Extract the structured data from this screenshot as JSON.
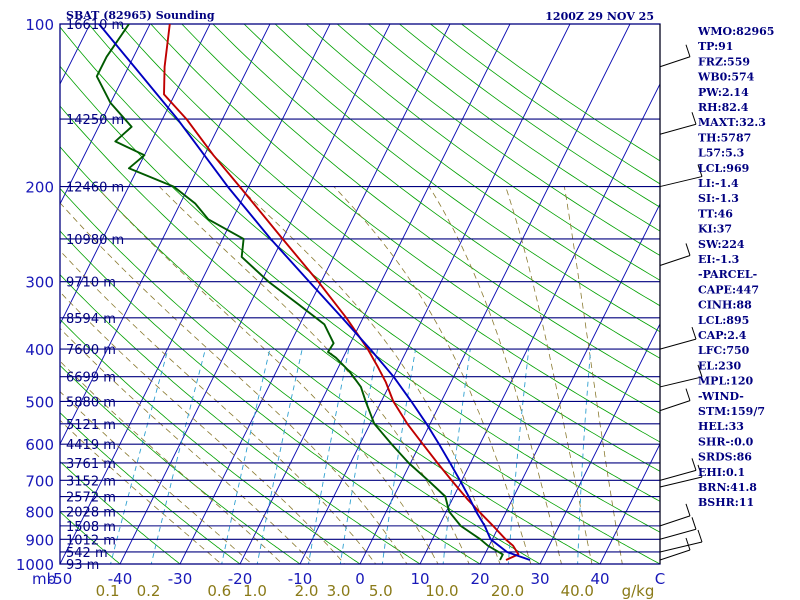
{
  "header": {
    "title": "SBAT (82965) Sounding",
    "time": "1200Z 29 NOV 25"
  },
  "indices": [
    "WMO:82965",
    "TP:91",
    "FRZ:559",
    "WB0:574",
    "PW:2.14",
    "RH:82.4",
    "MAXT:32.3",
    "TH:5787",
    "L57:5.3",
    "LCL:969",
    "LI:-1.4",
    "SI:-1.3",
    "TT:46",
    "KI:37",
    "SW:224",
    "EI:-1.3",
    "-PARCEL-",
    "CAPE:447",
    "CINH:88",
    "LCL:895",
    "CAP:2.4",
    "LFC:750",
    "EL:230",
    "MPL:120",
    "-WIND-",
    "STM:159/7",
    "HEL:33",
    "SHR-:0.0",
    "SRDS:86",
    "EHI:0.1",
    "BRN:41.8",
    "BSHR:11"
  ],
  "colors": {
    "isobar": "#00007f",
    "isotherm": "#0000b0",
    "dry_adiabat": "#00a000",
    "moist_adiabat": "#8a7a30",
    "mixing_ratio": "#2fa0d0",
    "temperature": "#c00000",
    "dewpoint": "#005a00",
    "parcel": "#0000c0"
  },
  "chart_data": {
    "type": "line",
    "subtype": "skew-T log-P sounding",
    "title": "SBAT (82965) Sounding",
    "xlabel": "C",
    "ylabel": "mb",
    "xlim": [
      -50,
      50
    ],
    "ylim": [
      1000,
      100
    ],
    "pressure_ticks": [
      {
        "p": 100,
        "label": "100"
      },
      {
        "p": 200,
        "label": "200"
      },
      {
        "p": 300,
        "label": "300"
      },
      {
        "p": 400,
        "label": "400"
      },
      {
        "p": 500,
        "label": "500"
      },
      {
        "p": 600,
        "label": "600"
      },
      {
        "p": 700,
        "label": "700"
      },
      {
        "p": 800,
        "label": "800"
      },
      {
        "p": 900,
        "label": "900"
      },
      {
        "p": 1000,
        "label": "1000"
      }
    ],
    "temp_ticks": [
      {
        "t": -50,
        "label": "-50"
      },
      {
        "t": -40,
        "label": "-40"
      },
      {
        "t": -30,
        "label": "-30"
      },
      {
        "t": -20,
        "label": "-20"
      },
      {
        "t": -10,
        "label": "-10"
      },
      {
        "t": 0,
        "label": "0"
      },
      {
        "t": 10,
        "label": "10"
      },
      {
        "t": 20,
        "label": "20"
      },
      {
        "t": 30,
        "label": "30"
      },
      {
        "t": 40,
        "label": "40"
      },
      {
        "t": 50,
        "label": "C"
      }
    ],
    "mb_label": "mb",
    "heights": [
      {
        "p": 100,
        "label": "16610 m"
      },
      {
        "p": 150,
        "label": "14250 m"
      },
      {
        "p": 200,
        "label": "12460 m"
      },
      {
        "p": 250,
        "label": "10980 m"
      },
      {
        "p": 300,
        "label": "9710 m"
      },
      {
        "p": 350,
        "label": "8594 m"
      },
      {
        "p": 400,
        "label": "7600 m"
      },
      {
        "p": 450,
        "label": "6699 m"
      },
      {
        "p": 500,
        "label": "5880 m"
      },
      {
        "p": 550,
        "label": "5121 m"
      },
      {
        "p": 600,
        "label": "4419 m"
      },
      {
        "p": 650,
        "label": "3761 m"
      },
      {
        "p": 700,
        "label": "3152 m"
      },
      {
        "p": 750,
        "label": "2572 m"
      },
      {
        "p": 800,
        "label": "2028 m"
      },
      {
        "p": 850,
        "label": "1508 m"
      },
      {
        "p": 900,
        "label": "1012 m"
      },
      {
        "p": 950,
        "label": "542 m"
      },
      {
        "p": 1000,
        "label": "93 m"
      }
    ],
    "mixing_ratios": [
      {
        "w": 0.1,
        "label": "0.1"
      },
      {
        "w": 0.2,
        "label": "0.2"
      },
      {
        "w": 0.6,
        "label": "0.6"
      },
      {
        "w": 1.0,
        "label": "1.0"
      },
      {
        "w": 2.0,
        "label": "2.0"
      },
      {
        "w": 3.0,
        "label": "3.0"
      },
      {
        "w": 5.0,
        "label": "5.0"
      },
      {
        "w": 10.0,
        "label": "10.0"
      },
      {
        "w": 20.0,
        "label": "20.0"
      },
      {
        "w": 40.0,
        "label": "40.0"
      }
    ],
    "mixing_ratio_unit": "g/kg",
    "series": [
      {
        "name": "Temperature",
        "color": "#c00000",
        "points": [
          {
            "p": 983,
            "t": 24.0
          },
          {
            "p": 960,
            "t": 25.6
          },
          {
            "p": 925,
            "t": 24.0
          },
          {
            "p": 900,
            "t": 22.2
          },
          {
            "p": 850,
            "t": 19.0
          },
          {
            "p": 800,
            "t": 15.5
          },
          {
            "p": 760,
            "t": 12.6
          },
          {
            "p": 700,
            "t": 8.3
          },
          {
            "p": 650,
            "t": 4.5
          },
          {
            "p": 600,
            "t": 0.5
          },
          {
            "p": 550,
            "t": -3.8
          },
          {
            "p": 500,
            "t": -8.0
          },
          {
            "p": 460,
            "t": -10.9
          },
          {
            "p": 430,
            "t": -13.6
          },
          {
            "p": 400,
            "t": -16.6
          },
          {
            "p": 350,
            "t": -22.8
          },
          {
            "p": 300,
            "t": -30.5
          },
          {
            "p": 250,
            "t": -40.0
          },
          {
            "p": 200,
            "t": -51.5
          },
          {
            "p": 175,
            "t": -58.5
          },
          {
            "p": 150,
            "t": -66.0
          },
          {
            "p": 135,
            "t": -71.8
          },
          {
            "p": 120,
            "t": -74.0
          },
          {
            "p": 100,
            "t": -76.7
          }
        ]
      },
      {
        "name": "Dewpoint",
        "color": "#005a00",
        "points": [
          {
            "p": 983,
            "t": 23.0
          },
          {
            "p": 960,
            "t": 23.0
          },
          {
            "p": 925,
            "t": 19.8
          },
          {
            "p": 900,
            "t": 18.0
          },
          {
            "p": 850,
            "t": 13.6
          },
          {
            "p": 800,
            "t": 10.5
          },
          {
            "p": 750,
            "t": 8.6
          },
          {
            "p": 700,
            "t": 4.4
          },
          {
            "p": 650,
            "t": -0.3
          },
          {
            "p": 600,
            "t": -4.7
          },
          {
            "p": 550,
            "t": -9.3
          },
          {
            "p": 500,
            "t": -12.6
          },
          {
            "p": 470,
            "t": -14.6
          },
          {
            "p": 440,
            "t": -17.8
          },
          {
            "p": 415,
            "t": -21.2
          },
          {
            "p": 405,
            "t": -23.0
          },
          {
            "p": 390,
            "t": -22.8
          },
          {
            "p": 360,
            "t": -25.9
          },
          {
            "p": 330,
            "t": -32.0
          },
          {
            "p": 300,
            "t": -38.8
          },
          {
            "p": 270,
            "t": -45.3
          },
          {
            "p": 250,
            "t": -46.5
          },
          {
            "p": 230,
            "t": -54.0
          },
          {
            "p": 215,
            "t": -57.5
          },
          {
            "p": 200,
            "t": -62.5
          },
          {
            "p": 185,
            "t": -71.5
          },
          {
            "p": 175,
            "t": -70.0
          },
          {
            "p": 165,
            "t": -76.0
          },
          {
            "p": 155,
            "t": -74.5
          },
          {
            "p": 140,
            "t": -80.0
          },
          {
            "p": 125,
            "t": -84.5
          },
          {
            "p": 115,
            "t": -84.5
          },
          {
            "p": 100,
            "t": -83.5
          }
        ]
      },
      {
        "name": "Parcel",
        "color": "#0000c0",
        "points": [
          {
            "p": 983,
            "t": 28.0
          },
          {
            "p": 950,
            "t": 23.5
          },
          {
            "p": 900,
            "t": 19.7
          },
          {
            "p": 850,
            "t": 17.6
          },
          {
            "p": 800,
            "t": 15.0
          },
          {
            "p": 750,
            "t": 12.5
          },
          {
            "p": 700,
            "t": 9.7
          },
          {
            "p": 650,
            "t": 6.6
          },
          {
            "p": 600,
            "t": 3.2
          },
          {
            "p": 550,
            "t": -0.6
          },
          {
            "p": 500,
            "t": -5.0
          },
          {
            "p": 450,
            "t": -10.0
          },
          {
            "p": 400,
            "t": -16.2
          },
          {
            "p": 350,
            "t": -23.5
          },
          {
            "p": 300,
            "t": -32.0
          },
          {
            "p": 250,
            "t": -42.0
          },
          {
            "p": 200,
            "t": -53.5
          },
          {
            "p": 150,
            "t": -67.5
          },
          {
            "p": 100,
            "t": -88.5
          }
        ]
      }
    ]
  }
}
